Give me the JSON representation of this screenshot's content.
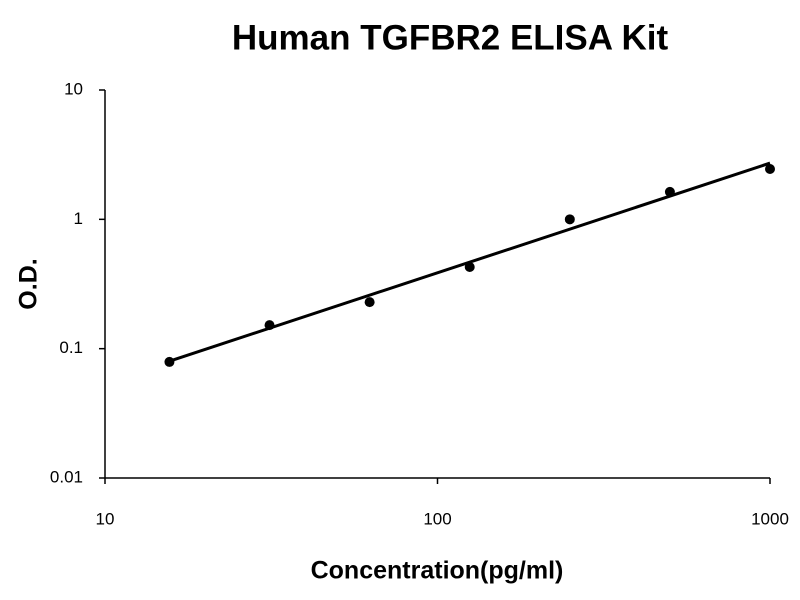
{
  "chart_data": {
    "type": "scatter",
    "title": "Human TGFBR2 ELISA Kit",
    "x_label": "Concentration(pg/ml)",
    "y_label": "O.D.",
    "x": [
      15.625,
      31.25,
      62.5,
      125,
      250,
      500,
      1000
    ],
    "values": [
      0.079,
      0.152,
      0.229,
      0.428,
      1.0,
      1.63,
      2.45
    ],
    "color": "#000000",
    "trendline": {
      "x": [
        15.625,
        1000
      ],
      "values": [
        0.08,
        2.72
      ],
      "color": "#000000"
    },
    "xlim": [
      10,
      1000
    ],
    "ylim": [
      0.01,
      10
    ],
    "xticks": [
      10,
      100,
      1000
    ],
    "yticks": [
      0.01,
      0.1,
      1,
      10
    ],
    "xscale": "log",
    "yscale": "log",
    "grid": false
  }
}
